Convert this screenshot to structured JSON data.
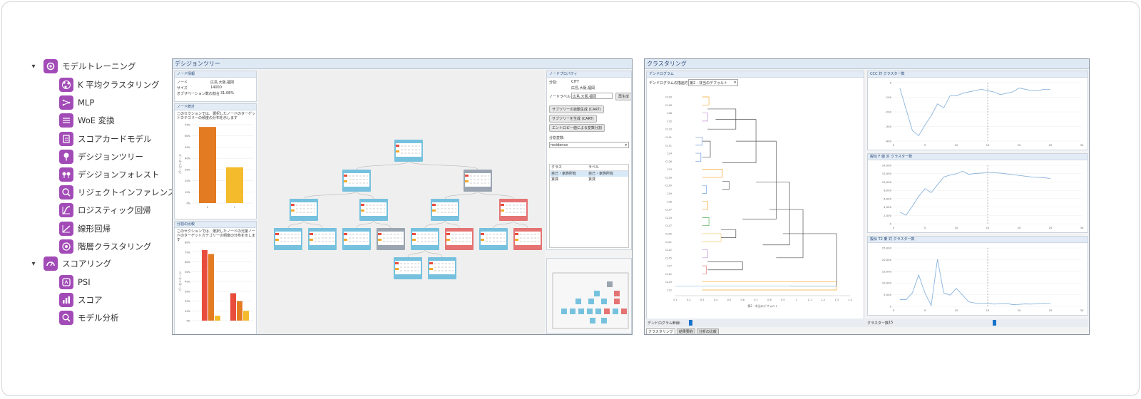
{
  "nav": {
    "groups": [
      {
        "label": "モデルトレーニング",
        "icon": "model-training-icon",
        "items": [
          {
            "label": "K 平均クラスタリング",
            "icon": "kmeans-icon"
          },
          {
            "label": "MLP",
            "icon": "mlp-icon"
          },
          {
            "label": "WoE 変換",
            "icon": "woe-icon"
          },
          {
            "label": "スコアカードモデル",
            "icon": "scorecard-icon"
          },
          {
            "label": "デシジョンツリー",
            "icon": "decision-tree-icon"
          },
          {
            "label": "デシジョンフォレスト",
            "icon": "decision-forest-icon"
          },
          {
            "label": "リジェクトインファレンス",
            "icon": "reject-inference-icon"
          },
          {
            "label": "ロジスティック回帰",
            "icon": "logistic-regression-icon"
          },
          {
            "label": "線形回帰",
            "icon": "linear-regression-icon"
          },
          {
            "label": "階層クラスタリング",
            "icon": "hierarchical-clustering-icon"
          }
        ]
      },
      {
        "label": "スコアリング",
        "icon": "scoring-icon",
        "items": [
          {
            "label": "PSI",
            "icon": "psi-icon"
          },
          {
            "label": "スコア",
            "icon": "score-icon"
          },
          {
            "label": "モデル分析",
            "icon": "model-analysis-icon"
          }
        ]
      }
    ]
  },
  "tree_screen": {
    "title": "デシジョンツリー",
    "node_info": {
      "title": "ノード情報",
      "rows": [
        [
          "ノード",
          "広島,大阪,福岡"
        ],
        [
          "サイズ",
          "14000"
        ],
        [
          "オブザベーション数の割合",
          "31.08%"
        ]
      ]
    },
    "node_stats": {
      "title": "ノード統計",
      "desc": "このセクションでは、選択したノードのターゲットカテゴリーの頻度の分布を示します",
      "ylabel": "パーセンテージ",
      "yticks": [
        "70%",
        "60%",
        "50%",
        "40%",
        "30%",
        "20%",
        "10%",
        "0%"
      ],
      "xticks": [
        "0",
        "1"
      ],
      "values": [
        68,
        32
      ]
    },
    "split_compare": {
      "title": "分割の比較",
      "desc": "このセクションでは、選択したノードの兄弟ノードのターゲットカテゴリーの頻度の分布を示します",
      "ylabel": "パーセンテージ",
      "yticks": [
        "80%",
        "70%",
        "60%",
        "50%",
        "40%",
        "30%",
        "20%",
        "10%",
        "0%"
      ],
      "groups": [
        [
          72,
          68,
          5
        ],
        [
          28,
          20,
          10
        ]
      ]
    },
    "properties": {
      "title": "ノードプロパティ",
      "var_label": "分割:",
      "var_value": "CITY",
      "var_vals": "広島,大阪,福岡",
      "node_label_label": "ノードラベル:",
      "node_label_value": "広島,大阪,福岡",
      "apply": "再生成",
      "btn1": "サブツリーの自動生成 (CART)",
      "btn2": "サブツリーを生成 (CART)",
      "btn3": "エントロピー値による変数分割",
      "split_var_label": "分割変数:",
      "split_var_value": "residence",
      "table_head": [
        "クラス",
        "ラベル"
      ],
      "table_rows": [
        [
          "自己・家族所有",
          "自己・家族所有"
        ],
        [
          "賃貸",
          "賃貸"
        ]
      ]
    }
  },
  "cluster_screen": {
    "title": "クラスタリング",
    "dendro_title": "デンドログラム",
    "dendro_select_label": "デンドログラムの描画方法:",
    "dendro_select_value": "第2 - 非当のデフォルト",
    "dendro_xlabel": "第2 - 非当のデフォルト",
    "dendro_xticks": [
      "0.1",
      "0.2",
      "0.3",
      "0.4",
      "0.5",
      "0.6",
      "0.7",
      "0.8",
      "0.9",
      "1",
      "1.1",
      "1.2",
      "1.3",
      "1.4"
    ],
    "dendro_leaves": [
      "CL29",
      "CL18",
      "CL8",
      "CL5",
      "CL13",
      "CL41",
      "CL11",
      "CL4",
      "CL26",
      "CL3",
      "CL16",
      "CL30",
      "CL9",
      "CL6",
      "CL37",
      "CL24",
      "CL17",
      "CL25",
      "CL21",
      "CL22",
      "CL15",
      "CL7",
      "CL12",
      "CL23",
      "CL2"
    ],
    "charts": [
      {
        "title": "CCC 対 クラスター数",
        "yticks": [
          "0",
          "-100",
          "-200",
          "-300",
          "-400"
        ],
        "values": [
          -20,
          -180,
          -340,
          -380,
          -300,
          -230,
          -140,
          -170,
          -80,
          -80,
          -60,
          -50,
          -40,
          -30,
          -40,
          -50,
          -70,
          -60,
          -50,
          -20,
          -30,
          -40,
          -40,
          -30,
          -30
        ],
        "ymin": -420,
        "ymax": 20
      },
      {
        "title": "擬似 F 値 対 クラスター数",
        "yticks": [
          "14,000",
          "12,000",
          "10,000",
          "8,000",
          "6,000",
          "4,000",
          "2,000",
          "0"
        ],
        "values": [
          3000,
          2200,
          4500,
          7000,
          9000,
          8000,
          10000,
          12000,
          12500,
          12800,
          13500,
          12700,
          12900,
          13000,
          13200,
          13100,
          13000,
          12800,
          12600,
          12400,
          12200,
          12000,
          11900,
          11800,
          11600
        ],
        "ymin": 0,
        "ymax": 15000
      },
      {
        "title": "擬似 T2 乗 対 クラスター数",
        "yticks": [
          "25,000",
          "20,000",
          "15,000",
          "10,000",
          "5,000",
          "0"
        ],
        "values": [
          3000,
          3000,
          6000,
          14000,
          6000,
          400,
          21000,
          6000,
          5000,
          8000,
          5000,
          2000,
          1500,
          1200,
          1500,
          1000,
          1200,
          1300,
          800,
          900,
          1100,
          1000,
          1200,
          1300,
          1200
        ],
        "ymin": 0,
        "ymax": 26000
      }
    ],
    "x_ticks": [
      "0",
      "5",
      "10",
      "15",
      "20",
      "25",
      "30"
    ],
    "slider1_label": "デンドログラム幹線:",
    "slider2_label": "クラスター数:",
    "slider2_value": "15",
    "tabs": [
      "クラスタリング",
      "結果要約",
      "分析の比較"
    ]
  },
  "colors": {
    "accent": "#a24bb7",
    "bar_orange": "#e37b23",
    "bar_yellow": "#f4bb2c",
    "bar_red": "#e84c3d",
    "node_blue": "#76c1de",
    "node_red": "#e57373",
    "node_gray": "#9aa5b1"
  }
}
